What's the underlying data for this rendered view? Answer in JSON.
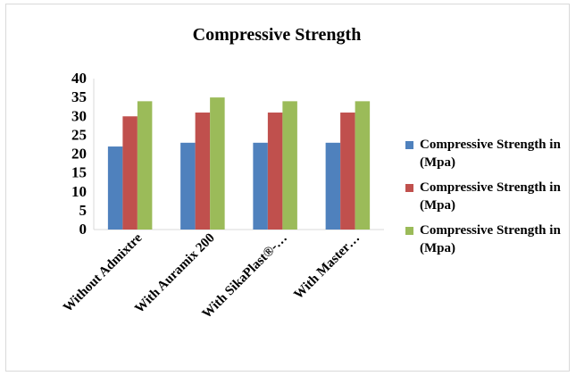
{
  "chart_data": {
    "type": "bar",
    "title": "Compressive Strength",
    "categories": [
      "Without Admixtre",
      "With Auramix 200",
      "With SikaPlast®-…",
      "With Master…"
    ],
    "series": [
      {
        "name": "Compressive Strength in (Mpa)",
        "values": [
          22,
          23,
          23,
          23
        ],
        "color": "#4f81bd"
      },
      {
        "name": "Compressive Strength in (Mpa)",
        "values": [
          30,
          31,
          31,
          31
        ],
        "color": "#c0504d"
      },
      {
        "name": "Compressive Strength in (Mpa)",
        "values": [
          34,
          35,
          34,
          34
        ],
        "color": "#9bbb59"
      }
    ],
    "ylim": [
      0,
      40
    ],
    "yticks": [
      0,
      5,
      10,
      15,
      20,
      25,
      30,
      35,
      40
    ],
    "grid": false,
    "legend": "right"
  }
}
